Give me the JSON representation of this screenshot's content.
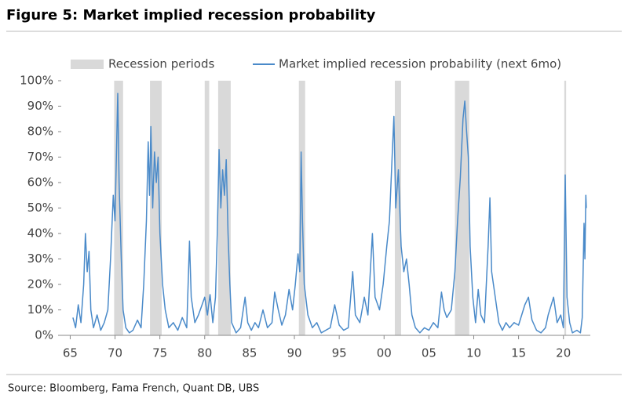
{
  "chart_data": {
    "type": "line",
    "title": "Figure 5: Market implied recession probability",
    "source": "Source: Bloomberg, Fama French, Quant DB, UBS",
    "recession_name": "Recession periods",
    "recession_color": "#d9d9d9",
    "recessions": [
      [
        1969.9,
        1970.9
      ],
      [
        1973.9,
        1975.2
      ],
      [
        1980.0,
        1980.5
      ],
      [
        1981.5,
        1982.9
      ],
      [
        1990.5,
        1991.2
      ],
      [
        2001.2,
        2001.9
      ],
      [
        2007.9,
        2009.5
      ],
      [
        2020.1,
        2020.3
      ]
    ],
    "x": [
      1965.3,
      1965.6,
      1965.9,
      1966.2,
      1966.5,
      1966.7,
      1966.9,
      1967.1,
      1967.3,
      1967.6,
      1968.0,
      1968.4,
      1968.8,
      1969.2,
      1969.5,
      1969.8,
      1970.0,
      1970.3,
      1970.45,
      1970.7,
      1970.9,
      1971.2,
      1971.6,
      1972.0,
      1972.5,
      1972.9,
      1973.2,
      1973.5,
      1973.7,
      1973.85,
      1974.0,
      1974.2,
      1974.4,
      1974.6,
      1974.8,
      1975.0,
      1975.3,
      1975.6,
      1976.0,
      1976.5,
      1977.0,
      1977.5,
      1978.0,
      1978.3,
      1978.5,
      1978.9,
      1979.3,
      1979.7,
      1980.0,
      1980.3,
      1980.6,
      1980.9,
      1981.2,
      1981.4,
      1981.6,
      1981.8,
      1982.0,
      1982.2,
      1982.4,
      1982.6,
      1982.8,
      1983.0,
      1983.5,
      1984.0,
      1984.5,
      1984.8,
      1985.2,
      1985.6,
      1986.0,
      1986.5,
      1987.0,
      1987.5,
      1987.8,
      1988.2,
      1988.6,
      1989.0,
      1989.4,
      1989.8,
      1990.1,
      1990.4,
      1990.6,
      1990.75,
      1990.9,
      1991.1,
      1991.5,
      1992.0,
      1992.5,
      1993.0,
      1993.5,
      1994.0,
      1994.5,
      1995.0,
      1995.5,
      1996.0,
      1996.5,
      1996.8,
      1997.3,
      1997.8,
      1998.2,
      1998.7,
      1999.0,
      1999.5,
      1999.9,
      2000.3,
      2000.6,
      2000.9,
      2001.1,
      2001.3,
      2001.6,
      2001.9,
      2002.2,
      2002.5,
      2002.8,
      2003.1,
      2003.5,
      2004.0,
      2004.5,
      2005.0,
      2005.5,
      2006.0,
      2006.4,
      2006.7,
      2007.0,
      2007.5,
      2007.9,
      2008.2,
      2008.5,
      2008.8,
      2009.0,
      2009.2,
      2009.4,
      2009.6,
      2009.9,
      2010.2,
      2010.5,
      2010.8,
      2011.2,
      2011.6,
      2011.8,
      2012.0,
      2012.4,
      2012.8,
      2013.2,
      2013.6,
      2014.0,
      2014.5,
      2015.0,
      2015.7,
      2016.1,
      2016.5,
      2017.0,
      2017.5,
      2018.0,
      2018.3,
      2018.9,
      2019.3,
      2019.7,
      2020.0,
      2020.2,
      2020.4,
      2020.7,
      2021.0,
      2021.5,
      2021.9,
      2022.1,
      2022.3,
      2022.4,
      2022.5,
      2022.55
    ],
    "series": [
      {
        "name": "Market implied recession probability (next 6mo)",
        "color": "#4a8ac9",
        "values": [
          7,
          3,
          12,
          5,
          20,
          40,
          25,
          33,
          10,
          3,
          8,
          2,
          5,
          10,
          30,
          55,
          45,
          95,
          60,
          30,
          10,
          3,
          1,
          2,
          6,
          3,
          20,
          45,
          76,
          55,
          82,
          50,
          72,
          60,
          70,
          40,
          20,
          10,
          3,
          5,
          2,
          7,
          3,
          37,
          15,
          5,
          8,
          12,
          15,
          8,
          16,
          5,
          15,
          40,
          73,
          50,
          65,
          55,
          69,
          40,
          20,
          5,
          1,
          3,
          15,
          5,
          2,
          5,
          3,
          10,
          3,
          5,
          17,
          10,
          4,
          8,
          18,
          10,
          20,
          32,
          25,
          72,
          45,
          20,
          8,
          3,
          5,
          1,
          2,
          3,
          12,
          4,
          2,
          3,
          25,
          8,
          5,
          15,
          8,
          40,
          15,
          10,
          20,
          35,
          45,
          70,
          86,
          50,
          65,
          35,
          25,
          30,
          20,
          8,
          3,
          1,
          3,
          2,
          5,
          3,
          17,
          10,
          7,
          10,
          25,
          45,
          62,
          85,
          92,
          80,
          70,
          35,
          15,
          5,
          18,
          8,
          5,
          35,
          54,
          25,
          15,
          5,
          2,
          5,
          3,
          5,
          4,
          12,
          15,
          6,
          2,
          1,
          3,
          8,
          15,
          5,
          8,
          3,
          63,
          15,
          5,
          1,
          2,
          1,
          7,
          44,
          30,
          55,
          50
        ]
      }
    ],
    "xlim": [
      1964,
      2023
    ],
    "ylim": [
      0,
      100
    ],
    "xticks": [
      {
        "value": 1965,
        "label": "65"
      },
      {
        "value": 1970,
        "label": "70"
      },
      {
        "value": 1975,
        "label": "75"
      },
      {
        "value": 1980,
        "label": "80"
      },
      {
        "value": 1985,
        "label": "85"
      },
      {
        "value": 1990,
        "label": "90"
      },
      {
        "value": 1995,
        "label": "95"
      },
      {
        "value": 2000,
        "label": "00"
      },
      {
        "value": 2005,
        "label": "05"
      },
      {
        "value": 2010,
        "label": "10"
      },
      {
        "value": 2015,
        "label": "15"
      },
      {
        "value": 2020,
        "label": "20"
      }
    ],
    "yticks": [
      {
        "value": 0,
        "label": "0%"
      },
      {
        "value": 10,
        "label": "10%"
      },
      {
        "value": 20,
        "label": "20%"
      },
      {
        "value": 30,
        "label": "30%"
      },
      {
        "value": 40,
        "label": "40%"
      },
      {
        "value": 50,
        "label": "50%"
      },
      {
        "value": 60,
        "label": "60%"
      },
      {
        "value": 70,
        "label": "70%"
      },
      {
        "value": 80,
        "label": "80%"
      },
      {
        "value": 90,
        "label": "90%"
      },
      {
        "value": 100,
        "label": "100%"
      }
    ]
  }
}
